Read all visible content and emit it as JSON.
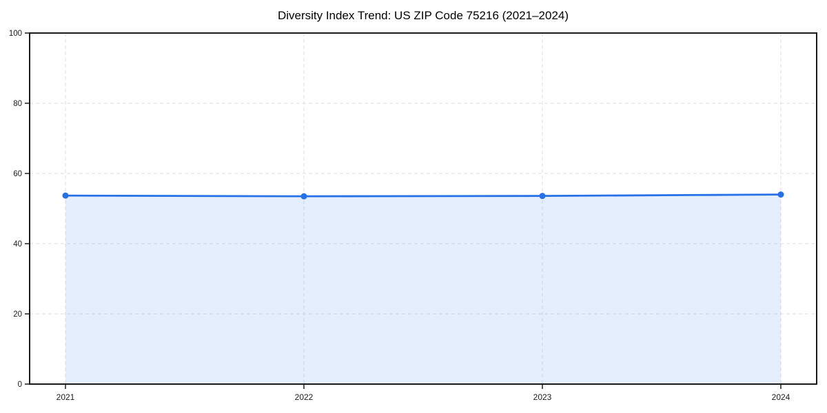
{
  "page": {
    "background": "#ffffff"
  },
  "chart_data": {
    "type": "line",
    "title": "Diversity Index Trend: US ZIP Code 75216 (2021–2024)",
    "subtitle": "",
    "categories": [
      "2021",
      "2022",
      "2023",
      "2024"
    ],
    "series": [
      {
        "name": "Diversity Index",
        "values": [
          53.7,
          53.5,
          53.6,
          54.0
        ]
      }
    ],
    "xlabel": "",
    "ylabel": "",
    "ylim": [
      0,
      100
    ],
    "yticks": [
      0,
      20,
      40,
      60,
      80,
      100
    ],
    "ytick_labels": [
      "0",
      "20",
      "40",
      "60",
      "80",
      "100"
    ],
    "grid": "dashed-both-axes",
    "legend": "none",
    "area_fill": true,
    "marker": "circle",
    "colors": {
      "line": "#2670e8",
      "marker": "#2670e8",
      "fill": "rgba(38,112,232,0.12)",
      "grid": "#dedede",
      "axis": "#1a1a1a",
      "text": "#1a1a1a",
      "background": "#ffffff"
    }
  }
}
